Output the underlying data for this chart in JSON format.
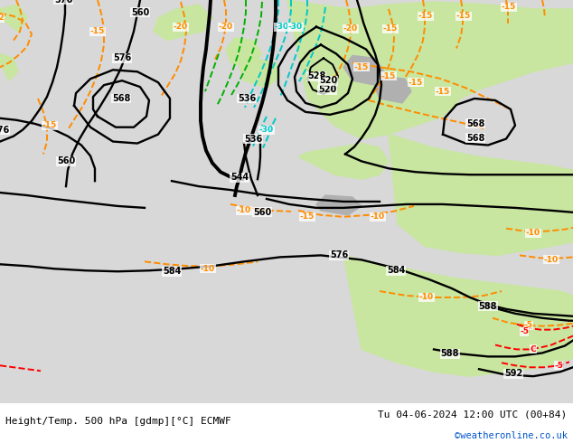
{
  "title_left": "Height/Temp. 500 hPa [gdmp][°C] ECMWF",
  "title_right": "Tu 04-06-2024 12:00 UTC (00+84)",
  "credit": "©weatheronline.co.uk",
  "land_color": "#c8e6a0",
  "sea_color": "#d8d8d8",
  "grey_color": "#b0b0b0",
  "z500_color": "#000000",
  "temp_orange": "#ff8c00",
  "temp_cyan": "#00c8c8",
  "temp_green": "#00b000",
  "temp_red": "#ff0000",
  "fig_width": 6.34,
  "fig_height": 4.9,
  "dpi": 100
}
